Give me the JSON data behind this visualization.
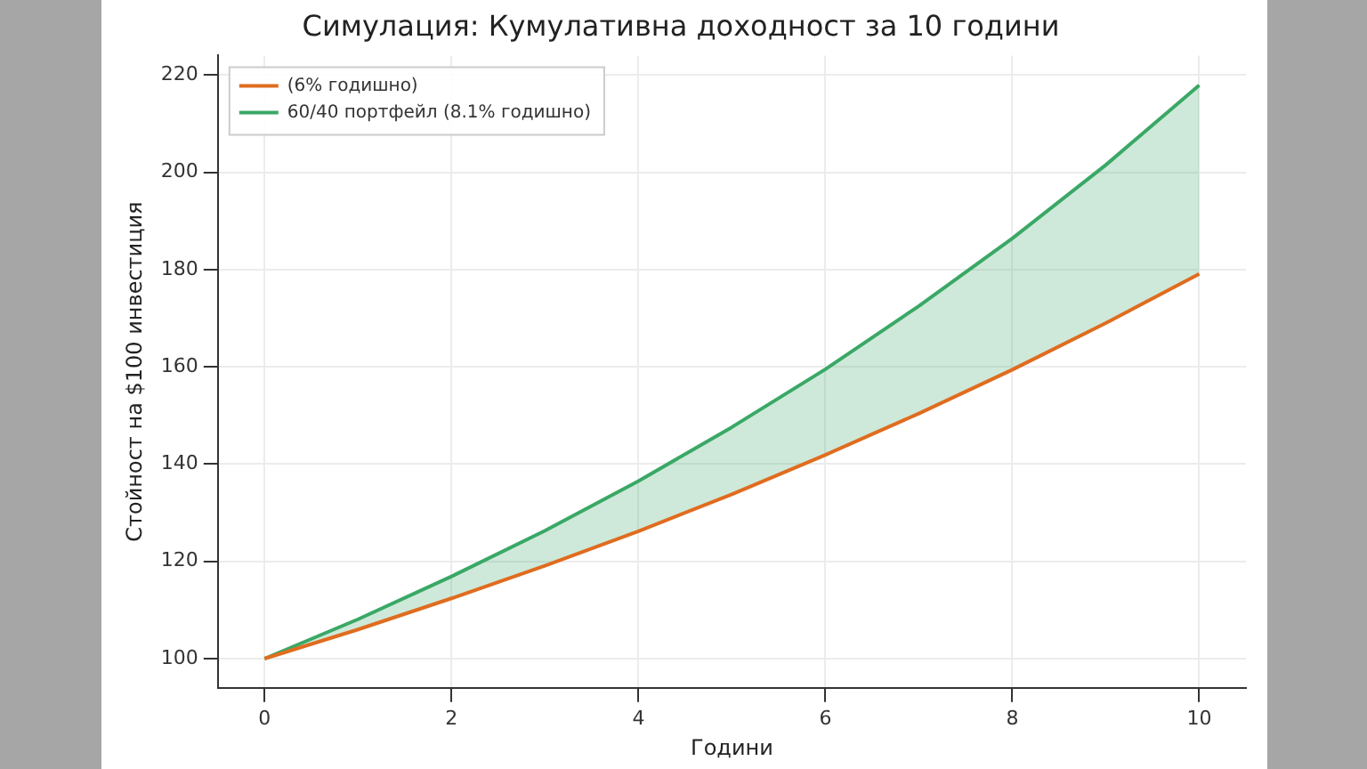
{
  "chart_data": {
    "type": "line",
    "title": "Симулация: Кумулативна доходност за 10 години",
    "xlabel": "Години",
    "ylabel": "Стойност на $100 инвестиция",
    "x": [
      0,
      1,
      2,
      3,
      4,
      5,
      6,
      7,
      8,
      9,
      10
    ],
    "series": [
      {
        "name": "(6% годишно)",
        "color": "#e06c1f",
        "values": [
          100,
          106,
          112.4,
          119.1,
          126.2,
          133.8,
          141.9,
          150.4,
          159.4,
          169,
          179.1
        ]
      },
      {
        "name": "60/40 портфейл (8.1% годишно)",
        "color": "#3aa866",
        "values": [
          100,
          108.1,
          116.9,
          126.3,
          136.5,
          147.6,
          159.5,
          172.5,
          186.4,
          201.5,
          217.9
        ],
        "lower": [
          100,
          106,
          112.4,
          119.1,
          126.2,
          133.8,
          141.9,
          150.4,
          159.4,
          169,
          179.1
        ],
        "upper": [
          100,
          108.1,
          116.9,
          126.3,
          136.5,
          147.6,
          159.5,
          172.5,
          186.4,
          201.5,
          217.9
        ]
      }
    ],
    "xlim": [
      -0.5,
      10.5
    ],
    "xticks": [
      0,
      2,
      4,
      6,
      8,
      10
    ],
    "ylim": [
      94,
      224
    ],
    "yticks": [
      100,
      120,
      140,
      160,
      180,
      200,
      220
    ],
    "grid": true,
    "legend": "top left"
  }
}
